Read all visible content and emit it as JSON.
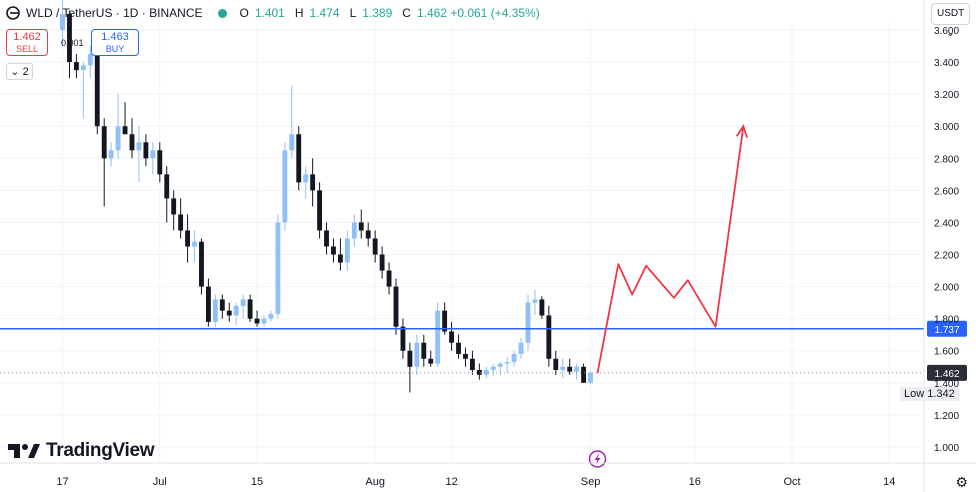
{
  "header": {
    "symbol": "WLD",
    "title": "WLD / TetherUS · 1D · BINANCE",
    "open_label": "O",
    "open": "1.401",
    "high_label": "H",
    "high": "1.474",
    "low_label": "L",
    "low": "1.389",
    "close_label": "C",
    "close": "1.462 +0.061 (+4.35%)"
  },
  "trade": {
    "sell_price": "1.462",
    "sell_label": "SELL",
    "buy_price": "1.463",
    "buy_label": "BUY",
    "spread": "0.001"
  },
  "indicators_toggle": "2",
  "currency_button": "USDT",
  "branding": "TradingView",
  "low_tag": {
    "label": "Low",
    "value": "1.342"
  },
  "colors": {
    "up": "#90bff9",
    "down": "#131722",
    "level": "#2962ff",
    "path": "#f23645"
  },
  "chart_data": {
    "type": "candlestick",
    "y_ticks": [
      1.0,
      1.2,
      1.4,
      1.6,
      1.8,
      2.0,
      2.2,
      2.4,
      2.6,
      2.8,
      3.0,
      3.2,
      3.4,
      3.6
    ],
    "y_tick_labels": [
      "1.000",
      "1.200",
      "1.400",
      "1.600",
      "1.800",
      "2.000",
      "2.200",
      "2.400",
      "2.600",
      "2.800",
      "3.000",
      "3.200",
      "3.400",
      "3.600"
    ],
    "ylim": [
      0.9,
      3.65
    ],
    "x_labels": [
      {
        "label": "17",
        "day": 0
      },
      {
        "label": "Jul",
        "day": 14
      },
      {
        "label": "15",
        "day": 28
      },
      {
        "label": "Aug",
        "day": 45
      },
      {
        "label": "12",
        "day": 56
      },
      {
        "label": "Sep",
        "day": 76
      },
      {
        "label": "16",
        "day": 91
      },
      {
        "label": "Oct",
        "day": 105
      },
      {
        "label": "14",
        "day": 119
      }
    ],
    "xlim": [
      -9,
      124
    ],
    "horizontal_level": {
      "value": 1.737,
      "label": "1.737"
    },
    "current_price": {
      "value": 1.462,
      "label": "1.462"
    },
    "period_low": 1.342,
    "candles": [
      [
        3.6,
        3.8,
        3.5,
        3.7
      ],
      [
        3.7,
        3.72,
        3.3,
        3.4
      ],
      [
        3.4,
        3.45,
        3.3,
        3.35
      ],
      [
        3.35,
        3.4,
        3.05,
        3.38
      ],
      [
        3.38,
        3.5,
        3.3,
        3.45
      ],
      [
        3.45,
        3.48,
        2.95,
        3.0
      ],
      [
        3.0,
        3.05,
        2.5,
        2.8
      ],
      [
        2.8,
        2.9,
        2.75,
        2.85
      ],
      [
        2.85,
        3.2,
        2.8,
        3.0
      ],
      [
        3.0,
        3.15,
        2.95,
        2.95
      ],
      [
        2.95,
        3.05,
        2.8,
        2.85
      ],
      [
        2.85,
        3.0,
        2.65,
        2.9
      ],
      [
        2.9,
        2.95,
        2.75,
        2.8
      ],
      [
        2.8,
        2.9,
        2.7,
        2.85
      ],
      [
        2.85,
        2.9,
        2.65,
        2.7
      ],
      [
        2.7,
        2.75,
        2.4,
        2.55
      ],
      [
        2.55,
        2.6,
        2.35,
        2.45
      ],
      [
        2.45,
        2.55,
        2.3,
        2.35
      ],
      [
        2.35,
        2.45,
        2.15,
        2.25
      ],
      [
        2.25,
        2.35,
        2.15,
        2.28
      ],
      [
        2.28,
        2.3,
        1.95,
        2.0
      ],
      [
        2.0,
        2.05,
        1.75,
        1.78
      ],
      [
        1.78,
        1.95,
        1.75,
        1.92
      ],
      [
        1.92,
        1.95,
        1.8,
        1.85
      ],
      [
        1.85,
        1.9,
        1.78,
        1.82
      ],
      [
        1.82,
        1.9,
        1.76,
        1.88
      ],
      [
        1.88,
        1.95,
        1.8,
        1.92
      ],
      [
        1.92,
        1.95,
        1.78,
        1.8
      ],
      [
        1.8,
        1.85,
        1.75,
        1.77
      ],
      [
        1.77,
        1.82,
        1.75,
        1.8
      ],
      [
        1.8,
        1.85,
        1.78,
        1.83
      ],
      [
        1.83,
        2.45,
        1.8,
        2.4
      ],
      [
        2.4,
        2.9,
        2.35,
        2.85
      ],
      [
        2.85,
        3.25,
        2.8,
        2.95
      ],
      [
        2.95,
        3.0,
        2.6,
        2.65
      ],
      [
        2.65,
        2.75,
        2.55,
        2.7
      ],
      [
        2.7,
        2.8,
        2.5,
        2.6
      ],
      [
        2.6,
        2.65,
        2.3,
        2.35
      ],
      [
        2.35,
        2.4,
        2.2,
        2.25
      ],
      [
        2.25,
        2.3,
        2.15,
        2.2
      ],
      [
        2.2,
        2.3,
        2.1,
        2.15
      ],
      [
        2.15,
        2.35,
        2.1,
        2.3
      ],
      [
        2.3,
        2.45,
        2.25,
        2.4
      ],
      [
        2.4,
        2.48,
        2.3,
        2.35
      ],
      [
        2.35,
        2.4,
        2.25,
        2.3
      ],
      [
        2.3,
        2.35,
        2.15,
        2.2
      ],
      [
        2.2,
        2.25,
        2.05,
        2.1
      ],
      [
        2.1,
        2.15,
        1.95,
        2.0
      ],
      [
        2.0,
        2.05,
        1.7,
        1.75
      ],
      [
        1.75,
        1.8,
        1.55,
        1.6
      ],
      [
        1.6,
        1.65,
        1.34,
        1.5
      ],
      [
        1.5,
        1.7,
        1.45,
        1.65
      ],
      [
        1.65,
        1.7,
        1.5,
        1.55
      ],
      [
        1.55,
        1.6,
        1.5,
        1.52
      ],
      [
        1.52,
        1.9,
        1.5,
        1.85
      ],
      [
        1.85,
        1.9,
        1.7,
        1.72
      ],
      [
        1.72,
        1.78,
        1.6,
        1.65
      ],
      [
        1.65,
        1.7,
        1.55,
        1.58
      ],
      [
        1.58,
        1.62,
        1.5,
        1.55
      ],
      [
        1.55,
        1.6,
        1.45,
        1.48
      ],
      [
        1.48,
        1.52,
        1.42,
        1.45
      ],
      [
        1.45,
        1.5,
        1.43,
        1.48
      ],
      [
        1.48,
        1.52,
        1.44,
        1.5
      ],
      [
        1.5,
        1.53,
        1.45,
        1.52
      ],
      [
        1.52,
        1.56,
        1.46,
        1.53
      ],
      [
        1.53,
        1.6,
        1.5,
        1.58
      ],
      [
        1.58,
        1.68,
        1.55,
        1.65
      ],
      [
        1.65,
        1.95,
        1.6,
        1.9
      ],
      [
        1.9,
        1.98,
        1.82,
        1.92
      ],
      [
        1.92,
        1.94,
        1.8,
        1.82
      ],
      [
        1.82,
        1.88,
        1.5,
        1.55
      ],
      [
        1.55,
        1.6,
        1.45,
        1.48
      ],
      [
        1.48,
        1.55,
        1.43,
        1.5
      ],
      [
        1.5,
        1.55,
        1.45,
        1.47
      ],
      [
        1.47,
        1.52,
        1.42,
        1.5
      ],
      [
        1.5,
        1.52,
        1.4,
        1.4
      ],
      [
        1.4,
        1.474,
        1.389,
        1.462
      ]
    ],
    "projection_path": [
      {
        "day": 77,
        "value": 1.46
      },
      {
        "day": 80,
        "value": 2.14
      },
      {
        "day": 82,
        "value": 1.95
      },
      {
        "day": 84,
        "value": 2.13
      },
      {
        "day": 88,
        "value": 1.93
      },
      {
        "day": 90,
        "value": 2.04
      },
      {
        "day": 94,
        "value": 1.75
      },
      {
        "day": 98,
        "value": 3.0
      }
    ]
  }
}
